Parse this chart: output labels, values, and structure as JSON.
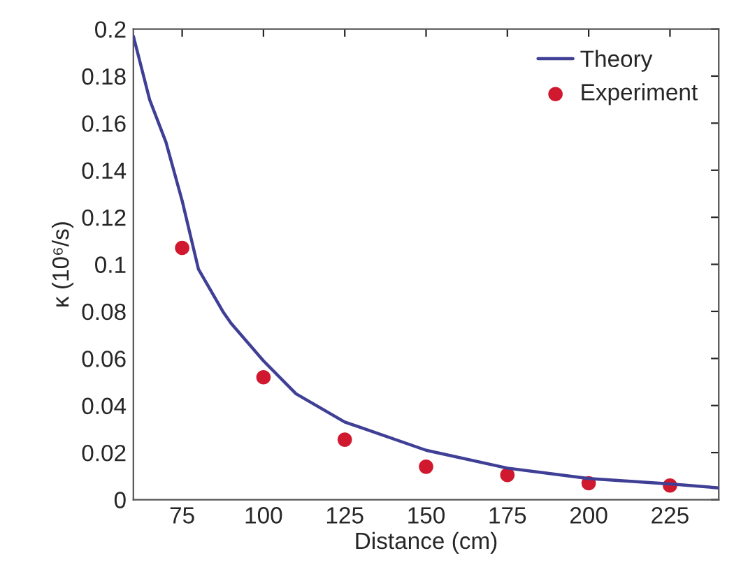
{
  "chart_data": {
    "type": "line",
    "xlabel": "Distance (cm)",
    "ylabel": "κ (10⁶/s)",
    "xlim": [
      60,
      240
    ],
    "ylim": [
      0,
      0.2
    ],
    "xticks": [
      75,
      100,
      125,
      150,
      175,
      200,
      225
    ],
    "yticks": [
      0,
      0.02,
      0.04,
      0.06,
      0.08,
      0.1,
      0.12,
      0.14,
      0.16,
      0.18,
      0.2
    ],
    "grid": false,
    "legend": "top right",
    "series": [
      {
        "name": "Theory",
        "color": "#3f3f96",
        "line_style": "solid",
        "marker": "none",
        "x": [
          60,
          65,
          70,
          75,
          80,
          87.5,
          90,
          100,
          110,
          125,
          150,
          175,
          200,
          225,
          240
        ],
        "values": [
          0.197,
          0.17,
          0.152,
          0.127,
          0.098,
          0.08,
          0.075,
          0.059,
          0.045,
          0.033,
          0.021,
          0.0134,
          0.009,
          0.0067,
          0.005
        ]
      },
      {
        "name": "Experiment",
        "type": "scatter",
        "color": "#d0182e",
        "marker": "circle",
        "x": [
          75,
          100,
          125,
          150,
          175,
          200,
          225
        ],
        "values": [
          0.107,
          0.052,
          0.0255,
          0.014,
          0.0105,
          0.007,
          0.006
        ]
      }
    ]
  }
}
